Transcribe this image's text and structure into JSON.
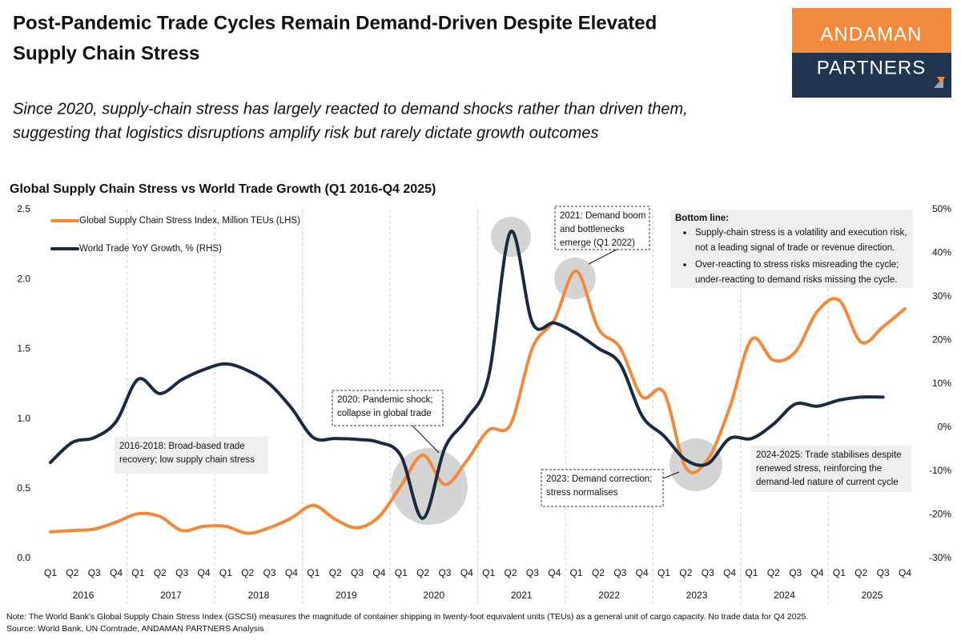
{
  "header": {
    "title": [
      "Post-Pandemic Trade Cycles Remain Demand-Driven Despite Elevated",
      "Supply Chain Stress"
    ],
    "subtitle": [
      "Since 2020, supply-chain stress has largely reacted to demand shocks rather than driven them,",
      "suggesting that logistics disruptions amplify risk but rarely dictate growth outcomes"
    ],
    "logo": [
      "ANDAMAN",
      "PARTNERS"
    ]
  },
  "chart_data": {
    "type": "line",
    "title": "Global Supply Chain Stress vs World Trade Growth (Q1 2016-Q4 2025)",
    "categories": [
      "Q1",
      "Q2",
      "Q3",
      "Q4",
      "Q1",
      "Q2",
      "Q3",
      "Q4",
      "Q1",
      "Q2",
      "Q3",
      "Q4",
      "Q1",
      "Q2",
      "Q3",
      "Q4",
      "Q1",
      "Q2",
      "Q3",
      "Q4",
      "Q1",
      "Q2",
      "Q3",
      "Q4",
      "Q1",
      "Q2",
      "Q3",
      "Q4",
      "Q1",
      "Q2",
      "Q3",
      "Q4",
      "Q1",
      "Q2",
      "Q3",
      "Q4",
      "Q1",
      "Q2",
      "Q3",
      "Q4"
    ],
    "groups": [
      "2016",
      "2017",
      "2018",
      "2019",
      "2020",
      "2021",
      "2022",
      "2023",
      "2024",
      "2025"
    ],
    "series": [
      {
        "name": "Global Supply Chain Stress Index, Million TEUs (LHS)",
        "color": "#f28a3e",
        "values": [
          0.19,
          0.2,
          0.21,
          0.26,
          0.32,
          0.3,
          0.2,
          0.23,
          0.23,
          0.18,
          0.22,
          0.29,
          0.38,
          0.28,
          0.22,
          0.3,
          0.52,
          0.74,
          0.53,
          0.7,
          0.92,
          0.96,
          1.51,
          1.71,
          2.06,
          1.65,
          1.51,
          1.16,
          1.19,
          0.65,
          0.71,
          1.08,
          1.57,
          1.42,
          1.48,
          1.77,
          1.85,
          1.55,
          1.66,
          1.79
        ]
      },
      {
        "name": "World Trade YoY Growth, % (RHS)",
        "color": "#1b2a41",
        "axis": "y2",
        "values": [
          -8,
          -3.4,
          -2.3,
          1.4,
          11.1,
          7.8,
          11,
          13.3,
          14.6,
          13.1,
          10,
          4.5,
          -2.3,
          -2.5,
          -2.7,
          -3.4,
          -6.5,
          -20.8,
          -4.7,
          2,
          11.8,
          44.9,
          24,
          24,
          21.6,
          18.2,
          14.6,
          2.7,
          -1.9,
          -7.4,
          -8.3,
          -2.5,
          -2.5,
          0.8,
          5.4,
          4.9,
          6.3,
          7,
          7,
          null
        ]
      }
    ],
    "ylim": [
      0,
      2.5
    ],
    "yticks": [
      {
        "value": 0,
        "label": "0.0"
      },
      0.5,
      {
        "value": 1,
        "label": "1.0"
      },
      1.5,
      {
        "value": 2,
        "label": "2.0"
      },
      2.5
    ],
    "y2lim": [
      -30,
      50
    ],
    "y2ticks": [
      {
        "value": -30,
        "label": "-30%"
      },
      {
        "value": -20,
        "label": "-20%"
      },
      {
        "value": -10,
        "label": "-10%"
      },
      {
        "value": 0,
        "label": "0%"
      },
      {
        "value": 10,
        "label": "10%"
      },
      {
        "value": 20,
        "label": "20%"
      },
      {
        "value": 30,
        "label": "30%"
      },
      {
        "value": 40,
        "label": "40%"
      },
      {
        "value": 50,
        "label": "50%"
      }
    ],
    "grid": false,
    "legend": "top-left",
    "annotations": [
      [
        "2016-2018: Broad-based trade",
        "recovery; low supply chain stress"
      ],
      [
        "2020: Pandemic shock;",
        "collapse in global trade"
      ],
      [
        "2021: Demand boom",
        "and bottlenecks",
        "emerge (Q1 2022)"
      ],
      [
        "2023: Demand correction;",
        "stress normalises"
      ],
      [
        "2024-2025: Trade stabilises despite",
        "renewed stress, reinforcing the",
        "demand-led nature of current cycle"
      ]
    ],
    "bottom_line": {
      "title": "Bottom line:",
      "bullets": [
        [
          "Supply-chain stress is a volatility and execution risk,",
          "not a leading signal of trade or revenue direction."
        ],
        [
          "Over-reacting to stress risks misreading the cycle;",
          "under-reacting to demand risks missing the cycle."
        ]
      ]
    }
  },
  "notes": [
    "Note: The World Bank's Global Supply Chain Stress Index (GSCSI) measures the magnitude of container shipping in twenty-foot equivalent units (TEUs) as a general unit of cargo capacity. No trade data for Q4 2025.",
    "Source: World Bank, UN Comtrade, ANDAMAN PARTNERS Analysis"
  ]
}
